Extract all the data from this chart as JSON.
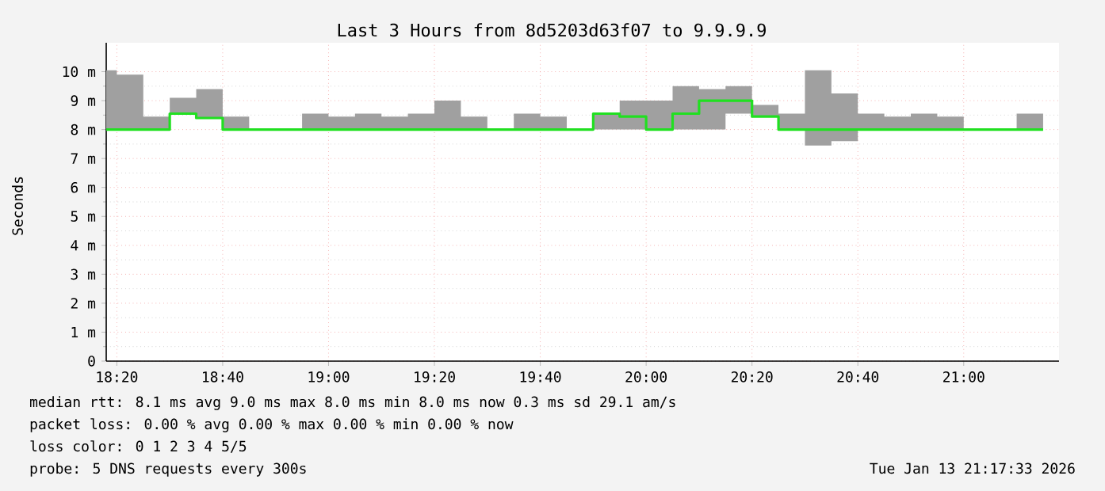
{
  "chart_data": {
    "type": "step",
    "title": "Last 3 Hours from 8d5203d63f07 to 9.9.9.9",
    "ylabel": "Seconds",
    "xlim": [
      "2026-01-13T18:18",
      "2026-01-13T21:18"
    ],
    "xticks": [
      {
        "value": "2026-01-13T18:20",
        "label": "18:20"
      },
      {
        "value": "2026-01-13T18:40",
        "label": "18:40"
      },
      {
        "value": "2026-01-13T19:00",
        "label": "19:00"
      },
      {
        "value": "2026-01-13T19:20",
        "label": "19:20"
      },
      {
        "value": "2026-01-13T19:40",
        "label": "19:40"
      },
      {
        "value": "2026-01-13T20:00",
        "label": "20:00"
      },
      {
        "value": "2026-01-13T20:20",
        "label": "20:20"
      },
      {
        "value": "2026-01-13T20:40",
        "label": "20:40"
      },
      {
        "value": "2026-01-13T21:00",
        "label": "21:00"
      }
    ],
    "ylim": [
      0,
      11
    ],
    "yticks": [
      {
        "value": 0,
        "label": "0"
      },
      {
        "value": 1,
        "label": "1 m"
      },
      {
        "value": 2,
        "label": "2 m"
      },
      {
        "value": 3,
        "label": "3 m"
      },
      {
        "value": 4,
        "label": "4 m"
      },
      {
        "value": 5,
        "label": "5 m"
      },
      {
        "value": 6,
        "label": "6 m"
      },
      {
        "value": 7,
        "label": "7 m"
      },
      {
        "value": 8,
        "label": "8 m"
      },
      {
        "value": 9,
        "label": "9 m"
      },
      {
        "value": 10,
        "label": "10 m"
      }
    ],
    "grid": true,
    "x": [
      "2026-01-13T18:18",
      "2026-01-13T18:20",
      "2026-01-13T18:25",
      "2026-01-13T18:30",
      "2026-01-13T18:35",
      "2026-01-13T18:40",
      "2026-01-13T18:45",
      "2026-01-13T18:50",
      "2026-01-13T18:55",
      "2026-01-13T19:00",
      "2026-01-13T19:05",
      "2026-01-13T19:10",
      "2026-01-13T19:15",
      "2026-01-13T19:20",
      "2026-01-13T19:25",
      "2026-01-13T19:30",
      "2026-01-13T19:35",
      "2026-01-13T19:40",
      "2026-01-13T19:45",
      "2026-01-13T19:50",
      "2026-01-13T19:55",
      "2026-01-13T20:00",
      "2026-01-13T20:05",
      "2026-01-13T20:10",
      "2026-01-13T20:15",
      "2026-01-13T20:20",
      "2026-01-13T20:25",
      "2026-01-13T20:30",
      "2026-01-13T20:35",
      "2026-01-13T20:40",
      "2026-01-13T20:45",
      "2026-01-13T20:50",
      "2026-01-13T20:55",
      "2026-01-13T21:00",
      "2026-01-13T21:05",
      "2026-01-13T21:10",
      "2026-01-13T21:15"
    ],
    "series": [
      {
        "color": "#20e020",
        "values": [
          8.0,
          8.0,
          8.0,
          8.55,
          8.4,
          8.0,
          8.0,
          8.0,
          8.0,
          8.0,
          8.0,
          8.0,
          8.0,
          8.0,
          8.0,
          8.0,
          8.0,
          8.0,
          8.0,
          8.55,
          8.45,
          8.0,
          8.55,
          9.0,
          9.0,
          8.45,
          8.0,
          8.0,
          8.0,
          8.0,
          8.0,
          8.0,
          8.0,
          8.0,
          8.0,
          8.0,
          8.0
        ],
        "upper": [
          10.05,
          9.9,
          8.45,
          9.1,
          9.4,
          8.45,
          8.0,
          8.0,
          8.55,
          8.45,
          8.55,
          8.45,
          8.55,
          9.0,
          8.45,
          8.0,
          8.55,
          8.45,
          8.0,
          8.55,
          9.0,
          9.0,
          9.5,
          9.4,
          9.5,
          8.85,
          8.55,
          10.05,
          9.25,
          8.55,
          8.45,
          8.55,
          8.45,
          8.0,
          8.0,
          8.55,
          8.55
        ],
        "lower": [
          8.0,
          8.0,
          8.0,
          8.55,
          8.4,
          8.0,
          8.0,
          8.0,
          8.0,
          8.0,
          8.0,
          8.0,
          8.0,
          8.0,
          8.0,
          8.0,
          8.0,
          8.0,
          8.0,
          8.0,
          8.0,
          8.0,
          8.0,
          8.0,
          8.55,
          8.45,
          8.0,
          7.45,
          7.6,
          8.0,
          8.0,
          8.0,
          8.0,
          8.0,
          8.0,
          8.0,
          8.0
        ]
      }
    ],
    "annotations": [
      "median rtt: 8.1 ms avg 9.0 ms max 8.0 ms min 8.0 ms now 0.3 ms sd 29.1 am/s",
      "packet loss: 0.00 % avg 0.00 % max 0.00 % min 0.00 % now",
      "loss color: 0 1 2 3 4 5/5",
      "probe: 5 DNS requests every 300s",
      "Tue Jan 13 21:17:33 2026"
    ]
  }
}
